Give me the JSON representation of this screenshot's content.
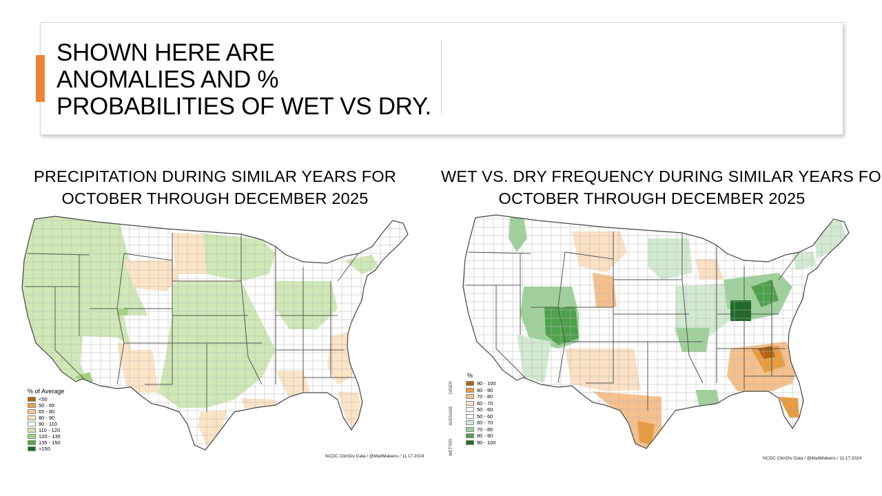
{
  "slide": {
    "title_lines": [
      "SHOWN HERE ARE",
      "ANOMALIES AND %",
      "PROBABILITIES OF WET VS DRY."
    ]
  },
  "colors": {
    "accent": "#ee8433",
    "state_border": "#666666",
    "county_border": "#aaaaaa"
  },
  "left_map": {
    "title_lines": [
      "PRECIPITATION DURING SIMILAR YEARS FOR",
      "OCTOBER THROUGH DECEMBER 2025"
    ],
    "legend_title": "% of Average",
    "legend": [
      {
        "label": "<50",
        "color": "#b3620f"
      },
      {
        "label": "50 - 65",
        "color": "#f0a044"
      },
      {
        "label": "65 - 80",
        "color": "#f6c993"
      },
      {
        "label": "80 - 90",
        "color": "#fbe3c6"
      },
      {
        "label": "90 - 110",
        "color": "#ffffff"
      },
      {
        "label": "110 - 120",
        "color": "#cfe8b6"
      },
      {
        "label": "120 - 135",
        "color": "#a1d47f"
      },
      {
        "label": "135 - 150",
        "color": "#54a842"
      },
      {
        "label": ">150",
        "color": "#1f6b27"
      }
    ],
    "credit": "NCDC ClimDiv Data / @MattMakens / 11.17.2024"
  },
  "right_map": {
    "title_lines": [
      "WET VS. DRY FREQUENCY DURING SIMILAR YEARS FOR",
      "OCTOBER THROUGH DECEMBER 2025"
    ],
    "legend_title": "%",
    "groups": [
      "DRIER",
      "AVERAGE",
      "WETTER"
    ],
    "legend": [
      {
        "label": "90 - 100",
        "color": "#b3620f"
      },
      {
        "label": "80 - 90",
        "color": "#e89a3c"
      },
      {
        "label": "70 - 80",
        "color": "#f5c08b"
      },
      {
        "label": "60 - 70",
        "color": "#fbe0c4"
      },
      {
        "label": "50 - 60",
        "color": "#ffffff"
      },
      {
        "label": "50 - 60",
        "color": "#ffffff"
      },
      {
        "label": "60 - 70",
        "color": "#d2ead0"
      },
      {
        "label": "70 - 80",
        "color": "#9fd29a"
      },
      {
        "label": "80 - 90",
        "color": "#4ea24a"
      },
      {
        "label": "90 - 100",
        "color": "#1e6b27"
      }
    ],
    "credit": "NCDC ClimDiv Data / @MattMakens / 11.17.2024"
  }
}
